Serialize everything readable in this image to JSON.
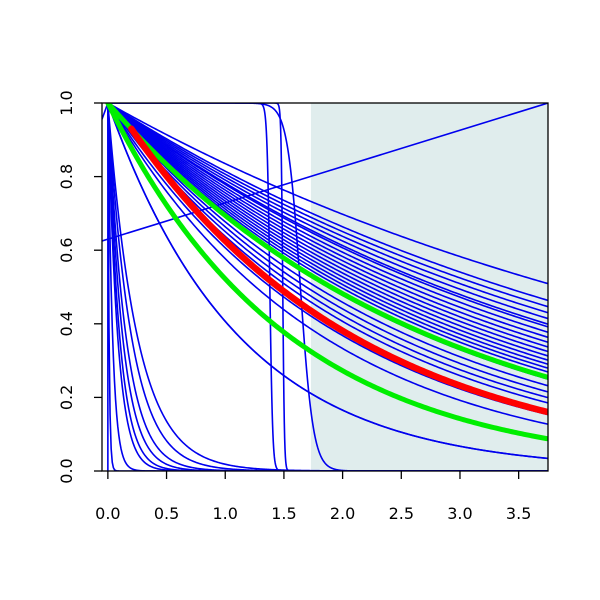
{
  "chart_data": {
    "type": "line",
    "title": "",
    "xlabel": "",
    "ylabel": "",
    "xlim": [
      -0.05,
      3.75
    ],
    "ylim": [
      0,
      1
    ],
    "x_ticks": [
      0.0,
      0.5,
      1.0,
      1.5,
      2.0,
      2.5,
      3.0,
      3.5
    ],
    "x_tick_labels": [
      "0.0",
      "0.5",
      "1.0",
      "1.5",
      "2.0",
      "2.5",
      "3.0",
      "3.5"
    ],
    "y_ticks": [
      0.0,
      0.2,
      0.4,
      0.6,
      0.8,
      1.0
    ],
    "y_tick_labels": [
      "0.0",
      "0.2",
      "0.4",
      "0.6",
      "0.8",
      "1.0"
    ],
    "grid": false,
    "legend": "none",
    "shaded_region": {
      "x_from": 1.73,
      "x_to": 3.75,
      "color": "#e0eded"
    },
    "colors": {
      "samples": "#0000ee",
      "mean": "#ff0000",
      "band": "#00ee00",
      "axis": "#000000"
    },
    "series_samples": {
      "color": "#0000ee",
      "exponential_rates": [
        0.18,
        0.205,
        0.215,
        0.225,
        0.235,
        0.245,
        0.25,
        0.26,
        0.27,
        0.28,
        0.29,
        0.3,
        0.31,
        0.32,
        0.33,
        0.34,
        0.35,
        0.37,
        0.39,
        0.41,
        0.43,
        0.45,
        0.5,
        0.55,
        0.9
      ],
      "steep_rates": [
        4.0,
        5.0,
        6.5,
        8.0,
        10.0,
        12.0,
        25.0,
        100.0
      ],
      "smooth_steps": [
        {
          "midpoint": 1.38,
          "width": 0.012
        },
        {
          "midpoint": 1.49,
          "width": 0.007
        },
        {
          "midpoint": 1.64,
          "width": 0.055
        }
      ],
      "rising_line": {
        "start": 0.625,
        "end": 1.0
      },
      "peak_decay": {
        "peak_x": 0.0,
        "peak_y": 1.0,
        "rate": 0.9
      }
    },
    "series_mean": {
      "color": "#ff0000",
      "from_x": 0.2,
      "to_x": 3.75,
      "start_y": 0.93,
      "end_y": 0.16
    },
    "series_band": [
      {
        "color": "#00ee00",
        "rate": 0.365
      },
      {
        "color": "#00ee00",
        "rate": 0.65
      }
    ]
  }
}
